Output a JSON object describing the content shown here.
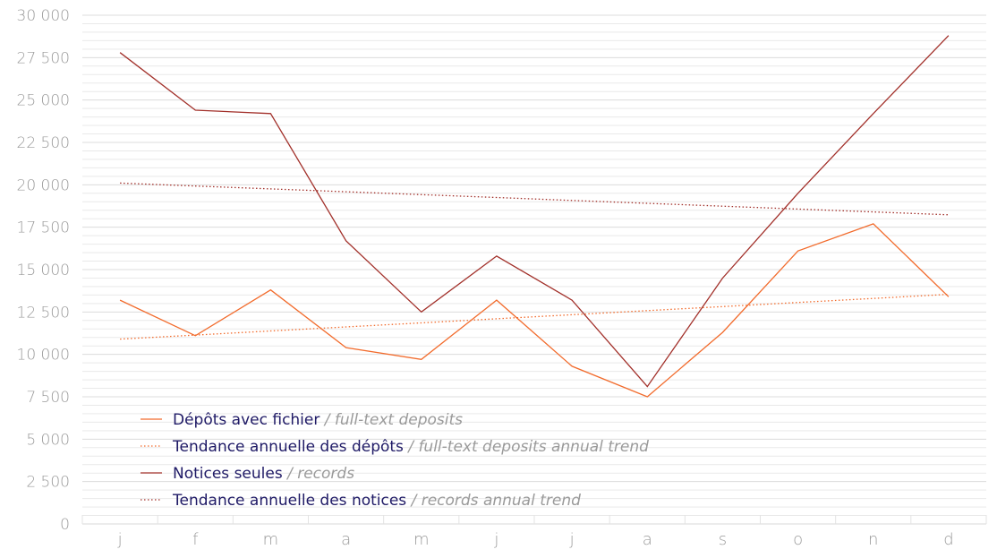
{
  "chart_data": {
    "type": "line",
    "categories": [
      "j",
      "f",
      "m",
      "a",
      "m",
      "j",
      "j",
      "a",
      "s",
      "o",
      "n",
      "d"
    ],
    "ylim": [
      0,
      30000
    ],
    "yticks": [
      0,
      2500,
      5000,
      7500,
      10000,
      12500,
      15000,
      17500,
      20000,
      22500,
      25000,
      27500,
      30000
    ],
    "ytick_labels": [
      "0",
      "2 500",
      "5 000",
      "7 500",
      "10 000",
      "12 500",
      "15 000",
      "17 500",
      "20 000",
      "22 500",
      "25 000",
      "27 500",
      "30 000"
    ],
    "grid": true,
    "legend_position": "bottom-left",
    "series": [
      {
        "name": "Dépôts avec fichier",
        "subtitle": "/ full-text deposits",
        "color": "#f26b2c",
        "style": "solid",
        "values": [
          13200,
          11100,
          13800,
          10400,
          9700,
          13200,
          9300,
          7500,
          11300,
          16100,
          17700,
          13400
        ]
      },
      {
        "name": "Tendance annuelle des dépôts",
        "subtitle": "/ full-text deposits annual trend",
        "color": "#f26b2c",
        "style": "dotted",
        "values": [
          10900,
          11140,
          11380,
          11620,
          11860,
          12100,
          12340,
          12580,
          12820,
          13060,
          13300,
          13540
        ]
      },
      {
        "name": "Notices seules",
        "subtitle": "/ records",
        "color": "#a2302a",
        "style": "solid",
        "values": [
          27800,
          24400,
          24200,
          16700,
          12500,
          15800,
          13200,
          8100,
          14500,
          19500,
          24200,
          28800
        ]
      },
      {
        "name": "Tendance annuelle des notices",
        "subtitle": "/ records annual trend",
        "color": "#a2302a",
        "style": "dotted",
        "values": [
          20100,
          19930,
          19760,
          19590,
          19420,
          19250,
          19080,
          18910,
          18740,
          18570,
          18400,
          18230
        ]
      }
    ]
  }
}
